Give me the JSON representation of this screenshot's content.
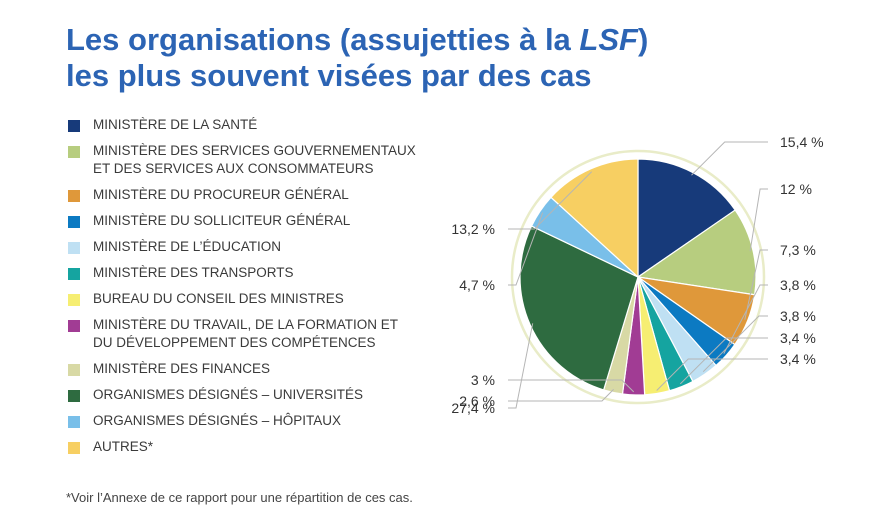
{
  "title_line1_pre": "Les organisations (assujetties à la ",
  "title_line1_em": "LSF",
  "title_line1_post": ")",
  "title_line2": "les plus souvent visées par des cas",
  "footnote": "*Voir l’Annexe de ce rapport pour une répartition de ces cas.",
  "colors": {
    "title": "#2c64b4",
    "ring": "#e9ecc8",
    "leader": "#b5b5b5"
  },
  "chart_data": {
    "type": "pie",
    "unit": "%",
    "slices": [
      {
        "category": "MINISTÈRE DE LA SANTÉ",
        "value": 15.4,
        "label": "15,4 %",
        "color": "#173a7a"
      },
      {
        "category": "MINISTÈRE DES SERVICES GOUVERNEMENTAUX ET DES SERVICES AUX CONSOMMATEURS",
        "value": 12,
        "label": "12 %",
        "color": "#b7cd7f"
      },
      {
        "category": "MINISTÈRE DU PROCUREUR GÉNÉRAL",
        "value": 7.3,
        "label": "7,3 %",
        "color": "#df983a"
      },
      {
        "category": "MINISTÈRE DU SOLLICITEUR GÉNÉRAL",
        "value": 3.8,
        "label": "3,8 %",
        "color": "#0c7ac2"
      },
      {
        "category": "MINISTÈRE DE L’ÉDUCATION",
        "value": 3.8,
        "label": "3,8 %",
        "color": "#bfe0f3"
      },
      {
        "category": "MINISTÈRE DES TRANSPORTS",
        "value": 3.4,
        "label": "3,4 %",
        "color": "#15a4a0"
      },
      {
        "category": "BUREAU DU CONSEIL DES MINISTRES",
        "value": 3.4,
        "label": "3,4 %",
        "color": "#f6ee72"
      },
      {
        "category": "MINISTÈRE DU TRAVAIL, DE LA FORMATION ET DU DÉVELOPPEMENT DES COMPÉTENCES",
        "value": 3,
        "label": "3 %",
        "color": "#a13c94"
      },
      {
        "category": "MINISTÈRE DES FINANCES",
        "value": 2.6,
        "label": "2,6 %",
        "color": "#d8d9a5"
      },
      {
        "category": "ORGANISMES DÉSIGNÉS – UNIVERSITÉS",
        "value": 27.4,
        "label": "27,4 %",
        "color": "#2e6b40"
      },
      {
        "category": "ORGANISMES DÉSIGNÉS – HÔPITAUX",
        "value": 4.7,
        "label": "4,7 %",
        "color": "#79bfe9"
      },
      {
        "category": "AUTRES*",
        "value": 13.2,
        "label": "13,2 %",
        "color": "#f7cf62"
      }
    ]
  }
}
